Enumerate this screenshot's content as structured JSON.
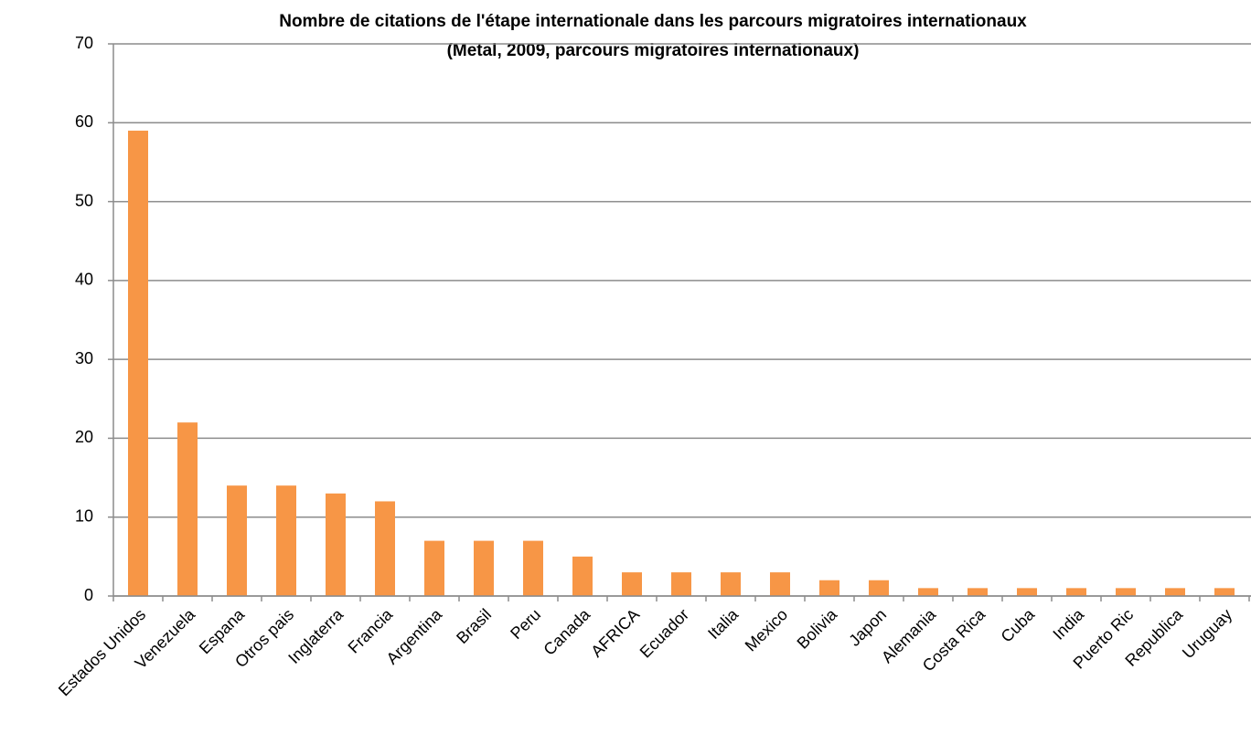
{
  "chart_data": {
    "type": "bar",
    "title": "Nombre de citations de l'étape internationale dans les parcours migratoires internationaux",
    "subtitle": "(Metal, 2009, parcours migratoires internationaux)",
    "categories": [
      "Estados Unidos",
      "Venezuela",
      "Espana",
      "Otros pais",
      "Inglaterra",
      "Francia",
      "Argentina",
      "Brasil",
      "Peru",
      "Canada",
      "AFRICA",
      "Ecuador",
      "Italia",
      "Mexico",
      "Bolivia",
      "Japon",
      "Alemania",
      "Costa Rica",
      "Cuba",
      "India",
      "Puerto Ric",
      "Republica",
      "Uruguay"
    ],
    "values": [
      59,
      22,
      14,
      14,
      13,
      12,
      7,
      7,
      7,
      5,
      3,
      3,
      3,
      3,
      2,
      2,
      1,
      1,
      1,
      1,
      1,
      1,
      1
    ],
    "color": "#f79646",
    "ylim": [
      0,
      70
    ],
    "yticks": [
      0,
      10,
      20,
      30,
      40,
      50,
      60,
      70
    ],
    "grid": true
  }
}
